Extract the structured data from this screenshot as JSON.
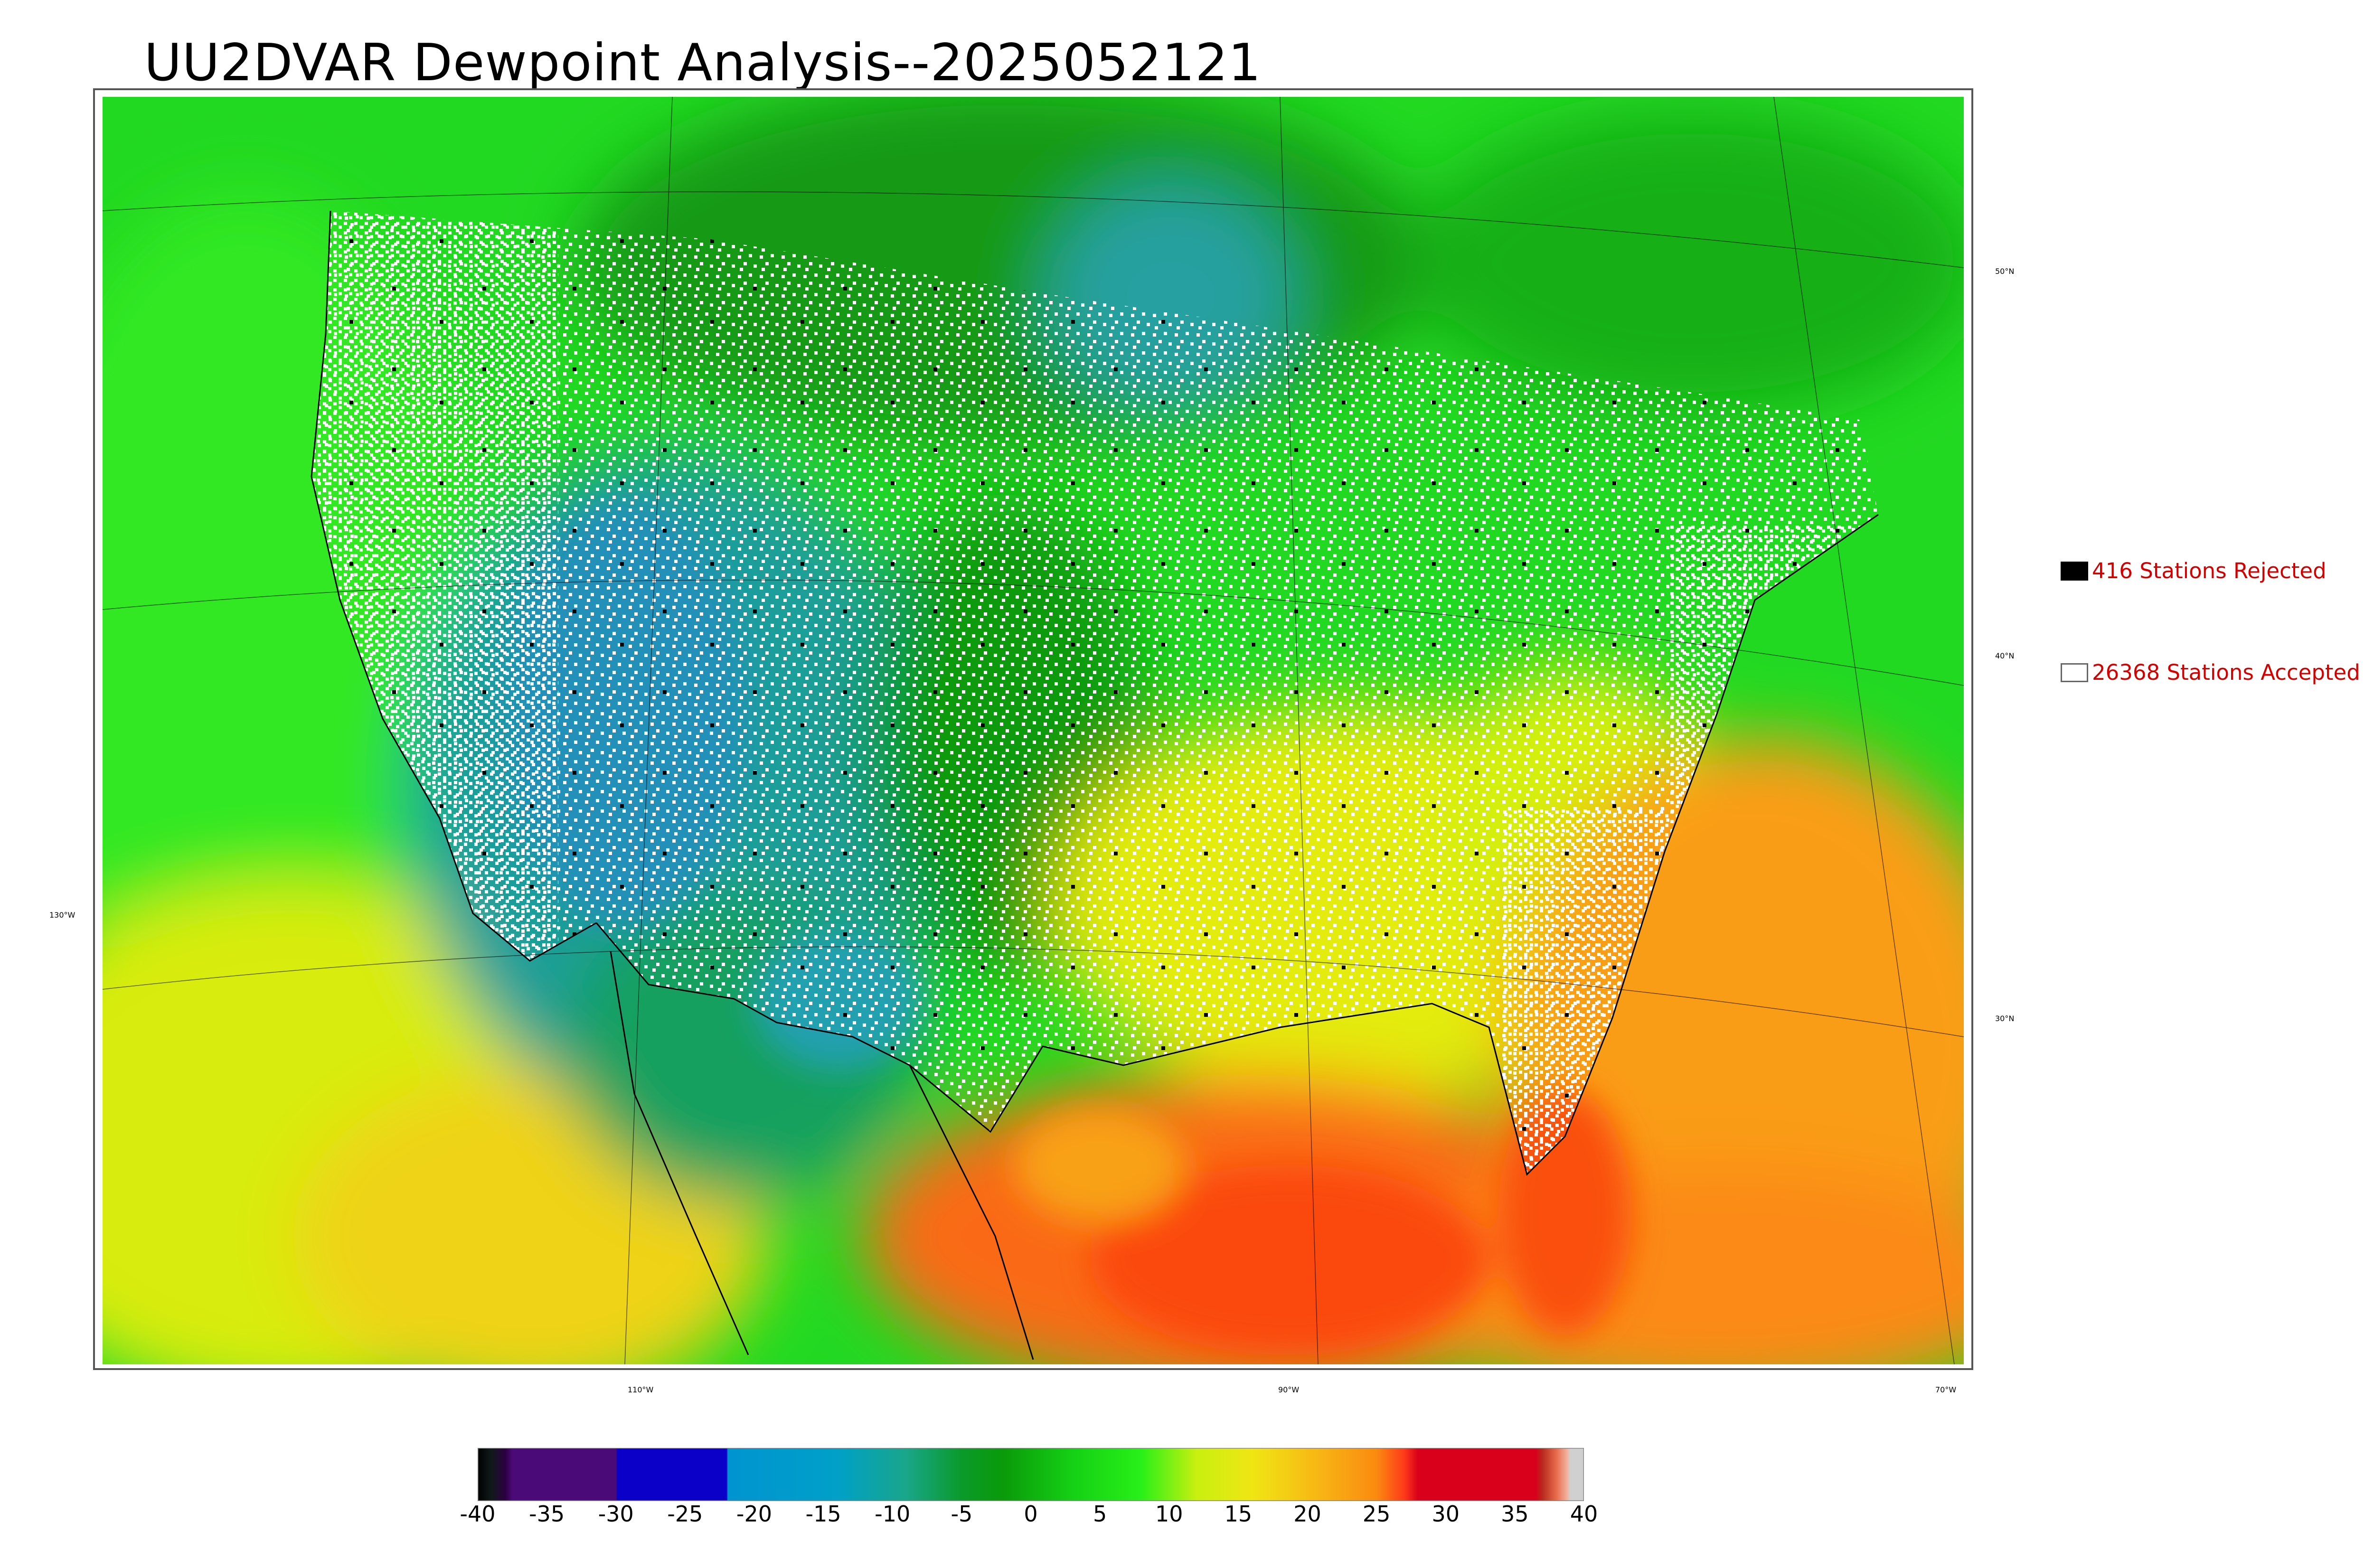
{
  "title": "UU2DVAR Dewpoint Analysis--2025052121",
  "map": {
    "lat_labels": [
      {
        "text": "50°N",
        "side": "right"
      },
      {
        "text": "40°N",
        "side": "right"
      },
      {
        "text": "30°N",
        "side": "right"
      },
      {
        "text": "130°W",
        "side": "left"
      }
    ],
    "lon_labels": [
      "110°W",
      "90°W",
      "70°W"
    ],
    "field": "dewpoint",
    "colors": {
      "low_dew": "#1e9bb8",
      "mid_dew": "#18c418",
      "bright_green": "#1fe81f",
      "yellow": "#e6ee10",
      "orange": "#fa9d12",
      "red_orange": "#fa4d10",
      "accepted_station": "#ffffff",
      "rejected_station": "#000000"
    }
  },
  "legend": {
    "rejected": {
      "label": "416 Stations Rejected",
      "count": 416,
      "swatch_color": "#000000"
    },
    "accepted": {
      "label": "26368 Stations Accepted",
      "count": 26368,
      "swatch_color": "#ffffff"
    }
  },
  "colorbar": {
    "ticks": [
      "-40",
      "-35",
      "-30",
      "-25",
      "-20",
      "-15",
      "-10",
      "-5",
      "0",
      "5",
      "10",
      "15",
      "20",
      "25",
      "30",
      "35",
      "40"
    ],
    "range": [
      -40,
      40
    ],
    "stops": [
      {
        "v": -40,
        "c": "#000000"
      },
      {
        "v": -39,
        "c": "#111a1a"
      },
      {
        "v": -38,
        "c": "#2a0040"
      },
      {
        "v": -37.5,
        "c": "#4a0a78"
      },
      {
        "v": -30,
        "c": "#4a0a78"
      },
      {
        "v": -29.9,
        "c": "#0a00c8"
      },
      {
        "v": -22,
        "c": "#0a00c8"
      },
      {
        "v": -21.9,
        "c": "#0094d0"
      },
      {
        "v": -14,
        "c": "#00a0c8"
      },
      {
        "v": -9,
        "c": "#19a68a"
      },
      {
        "v": -5,
        "c": "#0a9a2a"
      },
      {
        "v": -2,
        "c": "#0a9a0a"
      },
      {
        "v": 3,
        "c": "#15d015"
      },
      {
        "v": 8,
        "c": "#28f018"
      },
      {
        "v": 12,
        "c": "#c8f010"
      },
      {
        "v": 16,
        "c": "#f0e614"
      },
      {
        "v": 21,
        "c": "#f8b414"
      },
      {
        "v": 25,
        "c": "#fa8a10"
      },
      {
        "v": 27,
        "c": "#ff3a1a"
      },
      {
        "v": 28,
        "c": "#d8001a"
      },
      {
        "v": 36.5,
        "c": "#d8001a"
      },
      {
        "v": 37,
        "c": "#b82a1e"
      },
      {
        "v": 38,
        "c": "#e86a4a"
      },
      {
        "v": 38.8,
        "c": "#f0b4a0"
      },
      {
        "v": 39,
        "c": "#d0d0d0"
      },
      {
        "v": 40,
        "c": "#d0d0d0"
      }
    ]
  }
}
